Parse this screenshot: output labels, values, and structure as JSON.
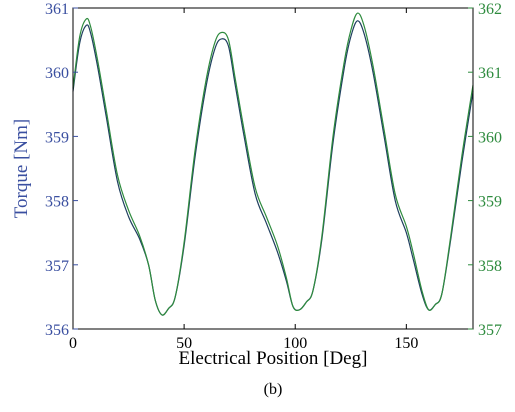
{
  "chart_data": {
    "type": "line",
    "caption": "(b)",
    "xlabel": "Electrical Position [Deg]",
    "ylabel_left": "Torque [Nm]",
    "ylabel_right": "",
    "xlim": [
      0,
      180
    ],
    "ylim_left": [
      356,
      361
    ],
    "ylim_right": [
      357,
      362
    ],
    "x_ticks": [
      0,
      50,
      100,
      150
    ],
    "y_ticks_left": [
      356,
      357,
      358,
      359,
      360,
      361
    ],
    "y_ticks_right": [
      357,
      358,
      359,
      360,
      361,
      362
    ],
    "grid": false,
    "colors": {
      "left_axis": "#3a4fa0",
      "right_axis": "#2e8b3e",
      "frame": "#000000"
    },
    "series": [
      {
        "axis": "left",
        "color": "#1f3f5f",
        "x": [
          0,
          3,
          6,
          8,
          11,
          15,
          20,
          25,
          30,
          34,
          37,
          40,
          43,
          46,
          50,
          55,
          60,
          64,
          67,
          70,
          73,
          77,
          82,
          87,
          92,
          96,
          99,
          102,
          105,
          108,
          112,
          117,
          122,
          125,
          128,
          131,
          135,
          140,
          145,
          150,
          153,
          157,
          160,
          163,
          166,
          170,
          175,
          180
        ],
        "y": [
          359.7,
          360.45,
          360.73,
          360.6,
          360.1,
          359.3,
          358.3,
          357.75,
          357.4,
          357.0,
          356.45,
          356.22,
          356.32,
          356.5,
          357.3,
          358.7,
          359.8,
          360.38,
          360.52,
          360.4,
          359.8,
          359.0,
          358.1,
          357.65,
          357.2,
          356.75,
          356.35,
          356.3,
          356.42,
          356.6,
          357.4,
          358.9,
          360.05,
          360.55,
          360.8,
          360.6,
          360.0,
          359.0,
          358.0,
          357.5,
          357.1,
          356.55,
          356.3,
          356.38,
          356.55,
          357.4,
          358.6,
          359.7
        ]
      },
      {
        "axis": "right",
        "color": "#2e8b3e",
        "x": [
          0,
          3,
          6,
          8,
          11,
          15,
          20,
          25,
          30,
          34,
          37,
          40,
          43,
          46,
          50,
          55,
          60,
          64,
          67,
          70,
          73,
          77,
          82,
          87,
          92,
          96,
          99,
          102,
          105,
          108,
          112,
          117,
          122,
          125,
          128,
          131,
          135,
          140,
          145,
          150,
          153,
          157,
          160,
          163,
          166,
          170,
          175,
          180
        ],
        "y": [
          360.75,
          361.55,
          361.83,
          361.7,
          361.2,
          360.4,
          359.4,
          358.85,
          358.45,
          358.0,
          357.45,
          357.22,
          357.32,
          357.5,
          358.35,
          359.8,
          360.9,
          361.48,
          361.62,
          361.5,
          360.9,
          360.1,
          359.2,
          358.75,
          358.3,
          357.8,
          357.35,
          357.3,
          357.42,
          357.6,
          358.45,
          360.0,
          361.15,
          361.65,
          361.92,
          361.72,
          361.1,
          360.1,
          359.1,
          358.6,
          358.2,
          357.6,
          357.3,
          357.38,
          357.55,
          358.45,
          359.7,
          360.8
        ]
      }
    ]
  }
}
